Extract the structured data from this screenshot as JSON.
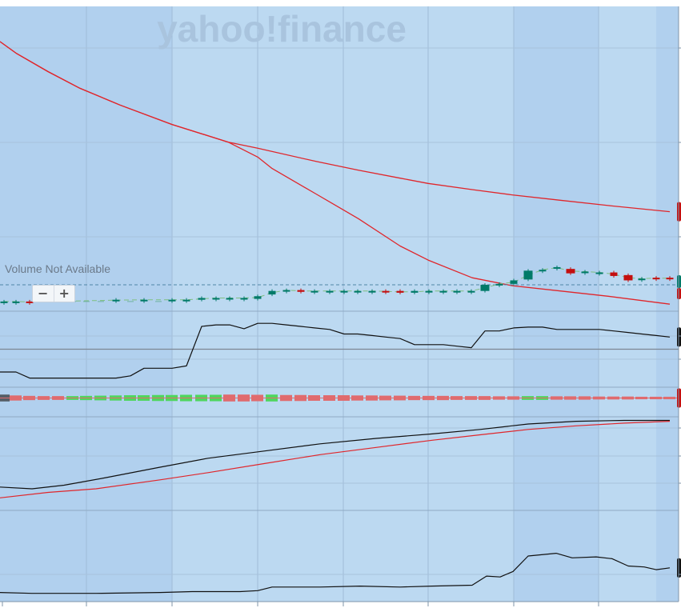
{
  "watermark": "yahoo!finance",
  "volume_label": "Volume Not Available",
  "zoom": {
    "minus": "−",
    "plus": "+"
  },
  "colors": {
    "up": "#007a68",
    "down": "#c40f0f",
    "ma_line": "#e0262b",
    "indicator_line": "#111111",
    "hist_up": "#4fd65e",
    "hist_down": "#e06b6e",
    "band_light": "#bcd9f1",
    "band_dark": "#b1d0ee"
  },
  "chart_data": [
    {
      "type": "line",
      "panel": "price",
      "series": [
        {
          "x": [
            0,
            20,
            60,
            100,
            150,
            215,
            285,
            322,
            340,
            395,
            448,
            500,
            535,
            590,
            640,
            700,
            760,
            837
          ],
          "values": [
            296,
            283,
            262,
            243,
            224,
            202,
            182,
            165,
            152,
            123,
            95,
            64,
            48,
            28,
            19,
            13,
            7,
            -2
          ]
        },
        {
          "x": [
            0,
            20,
            60,
            100,
            150,
            215,
            285,
            322,
            395,
            448,
            500,
            535,
            590,
            640,
            700,
            760,
            837
          ],
          "values": [
            296,
            283,
            262,
            243,
            224,
            202,
            182,
            175,
            160,
            150,
            141,
            135,
            128,
            122,
            116,
            110,
            103
          ]
        }
      ],
      "candles": [
        {
          "x": 5,
          "o": 1,
          "c": 1
        },
        {
          "x": 20,
          "o": 1,
          "c": 1
        },
        {
          "x": 37,
          "o": 1,
          "c": 0
        },
        {
          "x": 145,
          "o": 2,
          "c": 3
        },
        {
          "x": 180,
          "o": 3,
          "c": 3
        },
        {
          "x": 215,
          "o": 3,
          "c": 3
        },
        {
          "x": 233,
          "o": 3,
          "c": 3
        },
        {
          "x": 252,
          "o": 3,
          "c": 5
        },
        {
          "x": 270,
          "o": 5,
          "c": 5
        },
        {
          "x": 287,
          "o": 5,
          "c": 5
        },
        {
          "x": 305,
          "o": 5,
          "c": 5
        },
        {
          "x": 322,
          "o": 4,
          "c": 7
        },
        {
          "x": 340,
          "o": 9,
          "c": 13
        },
        {
          "x": 358,
          "o": 14,
          "c": 14
        },
        {
          "x": 376,
          "o": 14,
          "c": 12
        },
        {
          "x": 393,
          "o": 13,
          "c": 13
        },
        {
          "x": 412,
          "o": 13,
          "c": 13
        },
        {
          "x": 430,
          "o": 13,
          "c": 13
        },
        {
          "x": 447,
          "o": 13,
          "c": 13
        },
        {
          "x": 465,
          "o": 13,
          "c": 13
        },
        {
          "x": 482,
          "o": 13,
          "c": 12
        },
        {
          "x": 500,
          "o": 13,
          "c": 11
        },
        {
          "x": 518,
          "o": 11,
          "c": 13
        },
        {
          "x": 536,
          "o": 13,
          "c": 13
        },
        {
          "x": 554,
          "o": 13,
          "c": 13
        },
        {
          "x": 571,
          "o": 13,
          "c": 13
        },
        {
          "x": 589,
          "o": 13,
          "c": 13
        },
        {
          "x": 606,
          "o": 13,
          "c": 20
        },
        {
          "x": 624,
          "o": 21,
          "c": 21
        },
        {
          "x": 642,
          "o": 21,
          "c": 25
        },
        {
          "x": 660,
          "o": 26,
          "c": 36
        },
        {
          "x": 678,
          "o": 37,
          "c": 37
        },
        {
          "x": 696,
          "o": 39,
          "c": 40
        },
        {
          "x": 713,
          "o": 38,
          "c": 33
        },
        {
          "x": 731,
          "o": 35,
          "c": 35
        },
        {
          "x": 749,
          "o": 34,
          "c": 34
        },
        {
          "x": 767,
          "o": 34,
          "c": 30
        },
        {
          "x": 785,
          "o": 31,
          "c": 25
        },
        {
          "x": 802,
          "o": 27,
          "c": 27
        },
        {
          "x": 820,
          "o": 28,
          "c": 27
        },
        {
          "x": 837,
          "o": 28,
          "c": 27
        }
      ],
      "candles_ghost": [
        55,
        73,
        91,
        108,
        126,
        163,
        198
      ],
      "ylim": [
        -10,
        336
      ]
    },
    {
      "type": "line",
      "panel": "indicator-1",
      "series": [
        {
          "x": [
            0,
            20,
            37,
            145,
            163,
            180,
            215,
            233,
            252,
            270,
            287,
            305,
            322,
            340,
            358,
            376,
            393,
            412,
            430,
            447,
            465,
            482,
            500,
            518,
            536,
            554,
            571,
            589,
            606,
            624,
            642,
            660,
            678,
            696,
            713,
            731,
            749,
            767,
            785,
            802,
            820,
            837
          ],
          "values": [
            20,
            20,
            12,
            12,
            15,
            25,
            25,
            28,
            80,
            82,
            82,
            77,
            84,
            84,
            82,
            80,
            78,
            76,
            70,
            70,
            68,
            66,
            64,
            56,
            56,
            56,
            54,
            52,
            74,
            74,
            78,
            79,
            79,
            76,
            76,
            76,
            76,
            74,
            72,
            70,
            68,
            66
          ]
        }
      ],
      "reference_line": 50,
      "ylim": [
        0,
        100
      ]
    },
    {
      "type": "bar",
      "panel": "histogram",
      "x": [
        5,
        20,
        37,
        55,
        73,
        91,
        108,
        126,
        145,
        163,
        180,
        198,
        215,
        233,
        252,
        270,
        287,
        305,
        322,
        340,
        358,
        376,
        393,
        412,
        430,
        447,
        465,
        482,
        500,
        518,
        536,
        554,
        571,
        589,
        606,
        624,
        642,
        660,
        678,
        696,
        713,
        731,
        749,
        767,
        785,
        802,
        820,
        837
      ],
      "values": [
        -12,
        -8,
        -6,
        -5,
        -5,
        5,
        6,
        7,
        8,
        9,
        9,
        10,
        10,
        11,
        11,
        11,
        -12,
        -12,
        -11,
        12,
        -10,
        -10,
        -9,
        -9,
        -9,
        -8,
        -8,
        -7,
        -7,
        -6,
        -6,
        -6,
        -5,
        -5,
        -5,
        -4,
        -4,
        5,
        5,
        -4,
        -4,
        -4,
        -3,
        -3,
        -3,
        -2,
        -2,
        -2
      ],
      "ylim": [
        -15,
        15
      ]
    },
    {
      "type": "line",
      "panel": "indicator-2",
      "series": [
        {
          "x": [
            0,
            40,
            80,
            130,
            200,
            260,
            330,
            400,
            470,
            540,
            600,
            660,
            720,
            780,
            837
          ],
          "values": [
            -14,
            -16,
            -12,
            -4,
            8,
            18,
            26,
            34,
            40,
            45,
            50,
            56,
            59,
            60,
            60
          ]
        },
        {
          "x": [
            0,
            60,
            120,
            200,
            260,
            330,
            400,
            470,
            540,
            600,
            660,
            720,
            780,
            837
          ],
          "values": [
            -26,
            -20,
            -16,
            -6,
            2,
            12,
            22,
            30,
            38,
            44,
            50,
            54,
            57,
            59
          ]
        }
      ],
      "ylim": [
        -40,
        64
      ]
    },
    {
      "type": "line",
      "panel": "indicator-3",
      "series": [
        {
          "x": [
            0,
            40,
            120,
            200,
            240,
            300,
            322,
            340,
            400,
            450,
            500,
            540,
            590,
            608,
            625,
            641,
            660,
            695,
            715,
            745,
            765,
            785,
            805,
            820,
            837
          ],
          "values": [
            10,
            9,
            9,
            10,
            11,
            11,
            12,
            16,
            16,
            17,
            16,
            17,
            18,
            28,
            27,
            33,
            50,
            53,
            48,
            49,
            47,
            39,
            38,
            35,
            37
          ]
        }
      ],
      "ylim": [
        0,
        100
      ]
    }
  ]
}
